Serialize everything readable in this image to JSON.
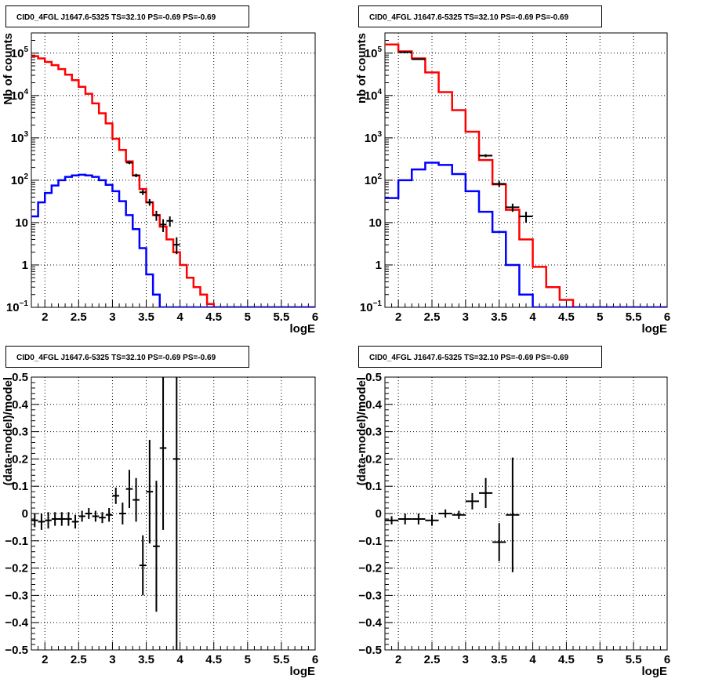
{
  "chart_data": [
    {
      "id": "top-left",
      "type": "step",
      "title": "CID0_4FGL J1647.6-5325 TS=32.10 PS=-0.69 PS=-0.69",
      "xlabel": "logE",
      "ylabel": "Nb of counts",
      "xlim": [
        1.8,
        6.0
      ],
      "ylim": [
        0.1,
        300000
      ],
      "ylog": true,
      "grid": true,
      "colors": {
        "total_model": "#ff0000",
        "source_model": "#0000ff",
        "data": "#000000"
      },
      "xticks": [
        {
          "v": 2,
          "label": "2"
        },
        {
          "v": 2.5,
          "label": "2.5"
        },
        {
          "v": 3,
          "label": "3"
        },
        {
          "v": 3.5,
          "label": "3.5"
        },
        {
          "v": 4,
          "label": "4"
        },
        {
          "v": 4.5,
          "label": "4.5"
        },
        {
          "v": 5,
          "label": "5"
        },
        {
          "v": 5.5,
          "label": "5.5"
        },
        {
          "v": 6,
          "label": "6"
        }
      ],
      "yticks": [
        {
          "v": 0.1,
          "base": "10",
          "exp": "−1"
        },
        {
          "v": 1,
          "base": "1",
          "exp": ""
        },
        {
          "v": 10,
          "base": "10",
          "exp": ""
        },
        {
          "v": 100,
          "base": "10",
          "exp": "2"
        },
        {
          "v": 1000,
          "base": "10",
          "exp": "3"
        },
        {
          "v": 10000,
          "base": "10",
          "exp": "4"
        },
        {
          "v": 100000,
          "base": "10",
          "exp": "5"
        }
      ],
      "bin_width": 0.1,
      "series": [
        {
          "name": "total_model",
          "style": "step",
          "x_start": 1.8,
          "values": [
            85000,
            75000,
            62000,
            52000,
            42000,
            31000,
            23000,
            16000,
            11000,
            6500,
            3800,
            2200,
            950,
            520,
            280,
            130,
            62,
            30,
            15,
            8,
            4,
            2,
            1,
            0.5,
            0.3,
            0.2,
            0.12,
            0.1,
            0.1,
            0.1,
            0.1,
            0.1,
            0.1,
            0.1,
            0.1,
            0.1,
            0.1,
            0.1,
            0.1,
            0.1,
            0.1,
            0.1
          ]
        },
        {
          "name": "source_model",
          "style": "step",
          "x_start": 1.8,
          "values": [
            14,
            30,
            50,
            75,
            100,
            120,
            130,
            135,
            130,
            120,
            100,
            78,
            55,
            32,
            15,
            7,
            2.5,
            0.6,
            0.2,
            0.1,
            0.1,
            0.1,
            0.1,
            0.1,
            0.1,
            0.1,
            0.1,
            0.1,
            0.1,
            0.1,
            0.1,
            0.1,
            0.1,
            0.1,
            0.1,
            0.1,
            0.1,
            0.1,
            0.1,
            0.1,
            0.1,
            0.1
          ]
        },
        {
          "name": "data",
          "style": "errorbar",
          "points": [
            {
              "x": 3.25,
              "y": 260,
              "lo": 240,
              "hi": 280
            },
            {
              "x": 3.35,
              "y": 130,
              "lo": 118,
              "hi": 142
            },
            {
              "x": 3.45,
              "y": 52,
              "lo": 45,
              "hi": 60
            },
            {
              "x": 3.55,
              "y": 30,
              "lo": 25,
              "hi": 36
            },
            {
              "x": 3.65,
              "y": 15,
              "lo": 11,
              "hi": 19
            },
            {
              "x": 3.75,
              "y": 9,
              "lo": 6,
              "hi": 12
            },
            {
              "x": 3.85,
              "y": 11,
              "lo": 8,
              "hi": 14
            },
            {
              "x": 3.95,
              "y": 3,
              "lo": 1.8,
              "hi": 4.5
            }
          ]
        }
      ]
    },
    {
      "id": "top-right",
      "type": "step",
      "title": "CID0_4FGL J1647.6-5325 TS=32.10 PS=-0.69 PS=-0.69",
      "xlabel": "logE",
      "ylabel": "nb of counts",
      "xlim": [
        1.8,
        6.0
      ],
      "ylim": [
        0.1,
        300000
      ],
      "ylog": true,
      "grid": true,
      "colors": {
        "total_model": "#ff0000",
        "source_model": "#0000ff",
        "data": "#000000"
      },
      "xticks": [
        {
          "v": 2,
          "label": "2"
        },
        {
          "v": 2.5,
          "label": "2.5"
        },
        {
          "v": 3,
          "label": "3"
        },
        {
          "v": 3.5,
          "label": "3.5"
        },
        {
          "v": 4,
          "label": "4"
        },
        {
          "v": 4.5,
          "label": "4.5"
        },
        {
          "v": 5,
          "label": "5"
        },
        {
          "v": 5.5,
          "label": "5.5"
        },
        {
          "v": 6,
          "label": "6"
        }
      ],
      "yticks": [
        {
          "v": 0.1,
          "base": "10",
          "exp": "−1"
        },
        {
          "v": 1,
          "base": "1",
          "exp": ""
        },
        {
          "v": 10,
          "base": "10",
          "exp": ""
        },
        {
          "v": 100,
          "base": "10",
          "exp": "2"
        },
        {
          "v": 1000,
          "base": "10",
          "exp": "3"
        },
        {
          "v": 10000,
          "base": "10",
          "exp": "4"
        },
        {
          "v": 100000,
          "base": "10",
          "exp": "5"
        }
      ],
      "bin_width": 0.2,
      "series": [
        {
          "name": "total_model",
          "style": "step",
          "x_start": 1.8,
          "values": [
            160000,
            110000,
            75000,
            35000,
            12000,
            4500,
            1400,
            300,
            80,
            20,
            4,
            0.9,
            0.3,
            0.15,
            0.1,
            0.1,
            0.1,
            0.1,
            0.1,
            0.1,
            0.1
          ]
        },
        {
          "name": "source_model",
          "style": "step",
          "x_start": 1.8,
          "values": [
            38,
            100,
            180,
            260,
            230,
            140,
            55,
            18,
            6,
            1,
            0.2,
            0.1,
            0.1,
            0.1,
            0.1,
            0.1,
            0.1,
            0.1,
            0.1,
            0.1,
            0.1
          ]
        },
        {
          "name": "data",
          "style": "errorbar",
          "points": [
            {
              "x": 2.1,
              "y": 105000,
              "lo": 100000,
              "hi": 110000
            },
            {
              "x": 2.3,
              "y": 72000,
              "lo": 69000,
              "hi": 75000
            },
            {
              "x": 3.3,
              "y": 380,
              "lo": 350,
              "hi": 410
            },
            {
              "x": 3.5,
              "y": 82,
              "lo": 70,
              "hi": 95
            },
            {
              "x": 3.7,
              "y": 23,
              "lo": 18,
              "hi": 28
            },
            {
              "x": 3.9,
              "y": 14,
              "lo": 10,
              "hi": 18
            }
          ]
        }
      ]
    },
    {
      "id": "bottom-left",
      "type": "scatter",
      "title": "CID0_4FGL J1647.6-5325 TS=32.10 PS=-0.69 PS=-0.69",
      "xlabel": "logE",
      "ylabel": "(data-model)/model",
      "xlim": [
        1.8,
        6.0
      ],
      "ylim": [
        -0.5,
        0.5
      ],
      "ylog": false,
      "grid": true,
      "colors": {
        "data": "#000000"
      },
      "xticks": [
        {
          "v": 2,
          "label": "2"
        },
        {
          "v": 2.5,
          "label": "2.5"
        },
        {
          "v": 3,
          "label": "3"
        },
        {
          "v": 3.5,
          "label": "3.5"
        },
        {
          "v": 4,
          "label": "4"
        },
        {
          "v": 4.5,
          "label": "4.5"
        },
        {
          "v": 5,
          "label": "5"
        },
        {
          "v": 5.5,
          "label": "5.5"
        },
        {
          "v": 6,
          "label": "6"
        }
      ],
      "yticks": [
        {
          "v": -0.5,
          "label": "−0.5"
        },
        {
          "v": -0.4,
          "label": "−0.4"
        },
        {
          "v": -0.3,
          "label": "−0.3"
        },
        {
          "v": -0.2,
          "label": "−0.2"
        },
        {
          "v": -0.1,
          "label": "−0.1"
        },
        {
          "v": 0,
          "label": "0"
        },
        {
          "v": 0.1,
          "label": "0.1"
        },
        {
          "v": 0.2,
          "label": "0.2"
        },
        {
          "v": 0.3,
          "label": "0.3"
        },
        {
          "v": 0.4,
          "label": "0.4"
        },
        {
          "v": 0.5,
          "label": "0.5"
        }
      ],
      "bin_width": 0.1,
      "series": [
        {
          "name": "residuals",
          "style": "errorbar",
          "points": [
            {
              "x": 1.85,
              "y": -0.025,
              "err": 0.025
            },
            {
              "x": 1.95,
              "y": -0.03,
              "err": 0.03
            },
            {
              "x": 2.05,
              "y": -0.025,
              "err": 0.03
            },
            {
              "x": 2.15,
              "y": -0.02,
              "err": 0.025
            },
            {
              "x": 2.25,
              "y": -0.02,
              "err": 0.025
            },
            {
              "x": 2.35,
              "y": -0.02,
              "err": 0.025
            },
            {
              "x": 2.45,
              "y": -0.03,
              "err": 0.025
            },
            {
              "x": 2.55,
              "y": -0.01,
              "err": 0.02
            },
            {
              "x": 2.65,
              "y": 0.0,
              "err": 0.02
            },
            {
              "x": 2.75,
              "y": -0.01,
              "err": 0.02
            },
            {
              "x": 2.85,
              "y": -0.015,
              "err": 0.02
            },
            {
              "x": 2.95,
              "y": -0.005,
              "err": 0.025
            },
            {
              "x": 3.05,
              "y": 0.065,
              "err": 0.03
            },
            {
              "x": 3.15,
              "y": 0.0,
              "err": 0.04
            },
            {
              "x": 3.25,
              "y": 0.09,
              "err": 0.07
            },
            {
              "x": 3.35,
              "y": 0.05,
              "err": 0.08
            },
            {
              "x": 3.45,
              "y": -0.19,
              "err": 0.11
            },
            {
              "x": 3.55,
              "y": 0.08,
              "err": 0.19
            },
            {
              "x": 3.65,
              "y": -0.12,
              "err": 0.24
            },
            {
              "x": 3.75,
              "y": 0.24,
              "err": 0.3
            },
            {
              "x": 3.95,
              "y": 0.2,
              "err": 0.7
            }
          ]
        }
      ]
    },
    {
      "id": "bottom-right",
      "type": "scatter",
      "title": "CID0_4FGL J1647.6-5325 TS=32.10 PS=-0.69 PS=-0.69",
      "xlabel": "logE",
      "ylabel": "(data-model)/model",
      "xlim": [
        1.8,
        6.0
      ],
      "ylim": [
        -0.5,
        0.5
      ],
      "ylog": false,
      "grid": true,
      "colors": {
        "data": "#000000"
      },
      "xticks": [
        {
          "v": 2,
          "label": "2"
        },
        {
          "v": 2.5,
          "label": "2.5"
        },
        {
          "v": 3,
          "label": "3"
        },
        {
          "v": 3.5,
          "label": "3.5"
        },
        {
          "v": 4,
          "label": "4"
        },
        {
          "v": 4.5,
          "label": "4.5"
        },
        {
          "v": 5,
          "label": "5"
        },
        {
          "v": 5.5,
          "label": "5.5"
        },
        {
          "v": 6,
          "label": "6"
        }
      ],
      "yticks": [
        {
          "v": -0.5,
          "label": "−0.5"
        },
        {
          "v": -0.4,
          "label": "−0.4"
        },
        {
          "v": -0.3,
          "label": "−0.3"
        },
        {
          "v": -0.2,
          "label": "−0.2"
        },
        {
          "v": -0.1,
          "label": "−0.1"
        },
        {
          "v": 0,
          "label": "0"
        },
        {
          "v": 0.1,
          "label": "0.1"
        },
        {
          "v": 0.2,
          "label": "0.2"
        },
        {
          "v": 0.3,
          "label": "0.3"
        },
        {
          "v": 0.4,
          "label": "0.4"
        },
        {
          "v": 0.5,
          "label": "0.5"
        }
      ],
      "bin_width": 0.2,
      "series": [
        {
          "name": "residuals",
          "style": "errorbar",
          "points": [
            {
              "x": 1.9,
              "y": -0.025,
              "err": 0.015
            },
            {
              "x": 2.1,
              "y": -0.02,
              "err": 0.02
            },
            {
              "x": 2.3,
              "y": -0.02,
              "err": 0.02
            },
            {
              "x": 2.5,
              "y": -0.025,
              "err": 0.02
            },
            {
              "x": 2.7,
              "y": 0.0,
              "err": 0.015
            },
            {
              "x": 2.9,
              "y": -0.005,
              "err": 0.015
            },
            {
              "x": 3.1,
              "y": 0.045,
              "err": 0.03
            },
            {
              "x": 3.3,
              "y": 0.075,
              "err": 0.055
            },
            {
              "x": 3.5,
              "y": -0.105,
              "err": 0.07
            },
            {
              "x": 3.7,
              "y": -0.005,
              "err": 0.21
            }
          ]
        }
      ]
    }
  ]
}
